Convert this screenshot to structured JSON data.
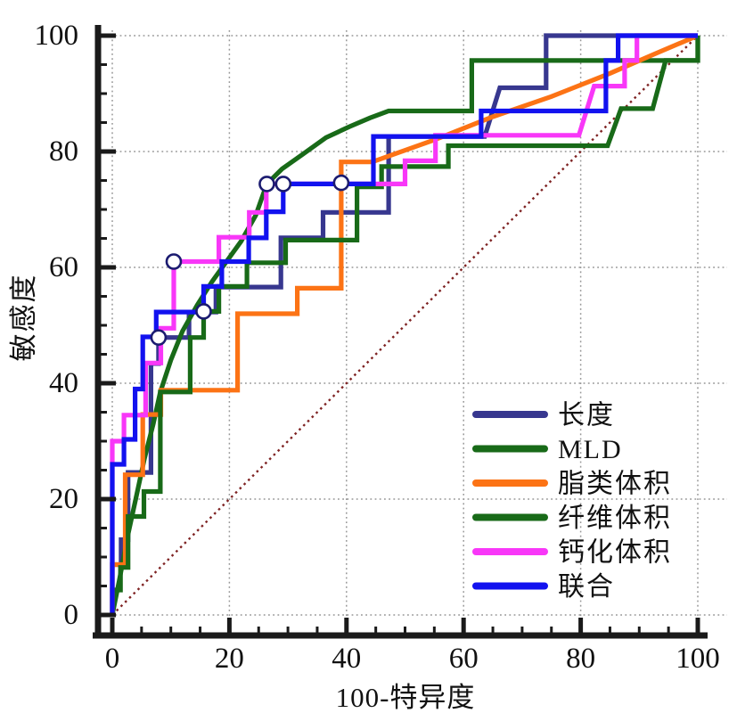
{
  "axes_text": {
    "xlabel": "100-特异度",
    "ylabel": "敏感度",
    "x_tick_labels": [
      "0",
      "20",
      "40",
      "60",
      "80",
      "100"
    ],
    "y_tick_labels": [
      "0",
      "20",
      "40",
      "60",
      "80",
      "100"
    ]
  },
  "chart_data": {
    "type": "line",
    "subtype": "roc-step-curves",
    "title": "",
    "xlabel": "100-特异度",
    "ylabel": "敏感度",
    "xlim": [
      0,
      100
    ],
    "ylim": [
      0,
      100
    ],
    "x_ticks": [
      0,
      20,
      40,
      60,
      80,
      100
    ],
    "y_ticks": [
      0,
      20,
      40,
      60,
      80,
      100
    ],
    "minor_tick_step": 5,
    "grid": "dotted-major",
    "grid_color": "#969696",
    "axis_color": "#1a1a1a",
    "legend_position": "lower-right",
    "reference_line": {
      "from": [
        0,
        0
      ],
      "to": [
        100,
        100
      ],
      "style": "dotted",
      "color": "#7E2222"
    },
    "marker_style": {
      "shape": "open-circle",
      "fill": "#ffffff",
      "stroke": "#1b1b70",
      "radius": 8
    },
    "series": [
      {
        "name": "长度",
        "color": "#37378F",
        "marker": [
          7.9,
          47.9
        ],
        "points": [
          [
            0,
            0
          ],
          [
            0,
            8.7
          ],
          [
            1.5,
            8.7
          ],
          [
            1.5,
            13
          ],
          [
            2.7,
            13
          ],
          [
            2.7,
            24.6
          ],
          [
            6.6,
            24.6
          ],
          [
            6.6,
            43.4
          ],
          [
            7.9,
            43.4
          ],
          [
            7.9,
            47.9
          ],
          [
            13.1,
            47.9
          ],
          [
            13.1,
            52.3
          ],
          [
            17.7,
            52.3
          ],
          [
            17.7,
            56.6
          ],
          [
            28.8,
            56.6
          ],
          [
            28.8,
            65.1
          ],
          [
            36,
            65.1
          ],
          [
            36,
            69.5
          ],
          [
            47.2,
            69.5
          ],
          [
            47.2,
            82.6
          ],
          [
            63.6,
            82.6
          ],
          [
            66.2,
            91
          ],
          [
            74.1,
            91
          ],
          [
            74.1,
            100
          ],
          [
            100,
            100
          ]
        ]
      },
      {
        "name": "MLD",
        "color": "#186A18",
        "marker": [
          26.4,
          74.4
        ],
        "points": [
          [
            0,
            0
          ],
          [
            1.2,
            6
          ],
          [
            2.5,
            13
          ],
          [
            4,
            20
          ],
          [
            5.5,
            27
          ],
          [
            7,
            33
          ],
          [
            8.2,
            38.5
          ],
          [
            10,
            44
          ],
          [
            12,
            49
          ],
          [
            14.5,
            53.5
          ],
          [
            17,
            57.5
          ],
          [
            19.5,
            61
          ],
          [
            22,
            64.5
          ],
          [
            24.5,
            69
          ],
          [
            26.4,
            74.4
          ],
          [
            29,
            77
          ],
          [
            32.5,
            79.5
          ],
          [
            36.5,
            82.4
          ],
          [
            40.5,
            84.3
          ],
          [
            44,
            85.8
          ],
          [
            47.2,
            87
          ],
          [
            61.4,
            87
          ],
          [
            61.4,
            95.7
          ],
          [
            100,
            95.7
          ],
          [
            100,
            100
          ]
        ]
      },
      {
        "name": "脂类体积",
        "color": "#FC7315",
        "marker": [
          39.1,
          74.6
        ],
        "points": [
          [
            0,
            0
          ],
          [
            0,
            8.7
          ],
          [
            2.2,
            8.7
          ],
          [
            2.2,
            24.2
          ],
          [
            5.2,
            24.2
          ],
          [
            5.2,
            34.6
          ],
          [
            8.3,
            34.6
          ],
          [
            8.3,
            38.8
          ],
          [
            21.4,
            38.8
          ],
          [
            21.4,
            52
          ],
          [
            31.6,
            52
          ],
          [
            31.6,
            56.4
          ],
          [
            39.1,
            56.4
          ],
          [
            39.1,
            78.2
          ],
          [
            44.4,
            78.2
          ],
          [
            55,
            82
          ],
          [
            65,
            86
          ],
          [
            75,
            89.5
          ],
          [
            85,
            93.5
          ],
          [
            93,
            97
          ],
          [
            100,
            100
          ]
        ]
      },
      {
        "name": "纤维体积",
        "color": "#186A18",
        "marker": [
          15.6,
          52.4
        ],
        "points": [
          [
            0,
            0
          ],
          [
            0,
            4.3
          ],
          [
            1.4,
            4.3
          ],
          [
            1.4,
            8.2
          ],
          [
            2.7,
            8.2
          ],
          [
            2.7,
            17
          ],
          [
            5.4,
            17
          ],
          [
            5.4,
            21.3
          ],
          [
            8.2,
            21.3
          ],
          [
            8.2,
            38.5
          ],
          [
            13.3,
            38.5
          ],
          [
            13.3,
            47.9
          ],
          [
            15.6,
            47.9
          ],
          [
            15.6,
            52.4
          ],
          [
            18.2,
            52.4
          ],
          [
            18.2,
            56.7
          ],
          [
            23,
            56.7
          ],
          [
            23,
            60.8
          ],
          [
            29.6,
            60.8
          ],
          [
            29.6,
            64.7
          ],
          [
            41.8,
            64.7
          ],
          [
            41.8,
            73.9
          ],
          [
            46,
            73.9
          ],
          [
            46,
            77.4
          ],
          [
            57.4,
            77.4
          ],
          [
            57.4,
            81
          ],
          [
            84.6,
            81
          ],
          [
            86.9,
            87.4
          ],
          [
            92.3,
            87.4
          ],
          [
            94.5,
            95.7
          ],
          [
            100,
            95.7
          ],
          [
            100,
            100
          ]
        ]
      },
      {
        "name": "钙化体积",
        "color": "#F837F8",
        "marker": [
          10.5,
          61
        ],
        "points": [
          [
            0,
            0
          ],
          [
            0,
            30
          ],
          [
            2,
            30
          ],
          [
            2,
            34.5
          ],
          [
            5.7,
            34.5
          ],
          [
            5.7,
            43.5
          ],
          [
            8.3,
            43.5
          ],
          [
            8.3,
            49.5
          ],
          [
            10.5,
            49.5
          ],
          [
            10.5,
            61
          ],
          [
            18.2,
            61
          ],
          [
            18.2,
            65.2
          ],
          [
            23.4,
            65.2
          ],
          [
            23.4,
            69.5
          ],
          [
            26.3,
            69.5
          ],
          [
            26.3,
            74.4
          ],
          [
            50,
            74.4
          ],
          [
            50,
            78.4
          ],
          [
            55.2,
            78.4
          ],
          [
            55.2,
            82.8
          ],
          [
            79.7,
            82.8
          ],
          [
            82.3,
            91.3
          ],
          [
            87.5,
            91.3
          ],
          [
            87.5,
            95.7
          ],
          [
            89.6,
            95.7
          ],
          [
            89.6,
            100
          ],
          [
            100,
            100
          ]
        ]
      },
      {
        "name": "联合",
        "color": "#1212EF",
        "marker": [
          29.2,
          74.4
        ],
        "points": [
          [
            0,
            0
          ],
          [
            0,
            26
          ],
          [
            2,
            26
          ],
          [
            2,
            30.3
          ],
          [
            3.9,
            30.3
          ],
          [
            3.9,
            39
          ],
          [
            5.2,
            39
          ],
          [
            5.2,
            48
          ],
          [
            7.5,
            48
          ],
          [
            7.5,
            52.3
          ],
          [
            15.6,
            52.3
          ],
          [
            15.6,
            56.7
          ],
          [
            18.7,
            56.7
          ],
          [
            18.7,
            61
          ],
          [
            23.3,
            61
          ],
          [
            23.3,
            65.1
          ],
          [
            26.3,
            65.1
          ],
          [
            26.3,
            69.6
          ],
          [
            29.2,
            69.6
          ],
          [
            29.2,
            74.4
          ],
          [
            44.6,
            74.4
          ],
          [
            44.6,
            82.6
          ],
          [
            63,
            82.6
          ],
          [
            63,
            87
          ],
          [
            84.3,
            87
          ],
          [
            84.3,
            95.7
          ],
          [
            86.4,
            95.7
          ],
          [
            86.4,
            100
          ],
          [
            100,
            100
          ]
        ]
      }
    ],
    "legend": {
      "items": [
        {
          "label": "长度",
          "color": "#37378F"
        },
        {
          "label": "MLD",
          "color": "#186A18"
        },
        {
          "label": "脂类体积",
          "color": "#FC7315"
        },
        {
          "label": "纤维体积",
          "color": "#186A18"
        },
        {
          "label": "钙化体积",
          "color": "#F837F8"
        },
        {
          "label": "联合",
          "color": "#1212EF"
        }
      ]
    }
  }
}
